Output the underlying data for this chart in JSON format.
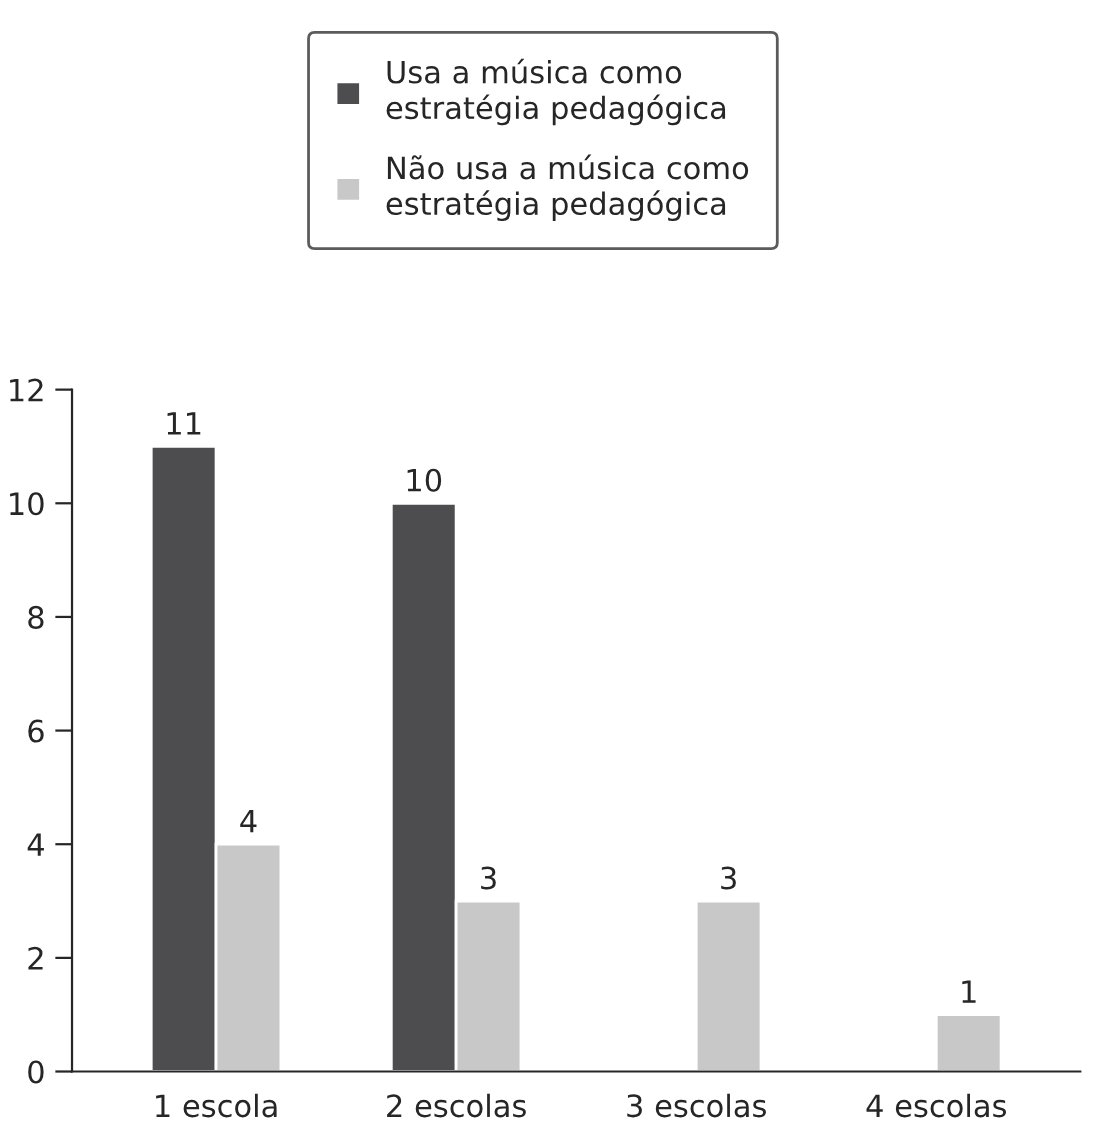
{
  "chart_data": {
    "type": "bar",
    "categories": [
      "1 escola",
      "2 escolas",
      "3 escolas",
      "4 escolas"
    ],
    "series": [
      {
        "name": "Usa a música como\nestratégia pedagógica",
        "color": "#4d4d4f",
        "values": [
          11,
          10,
          null,
          null
        ]
      },
      {
        "name": "Não usa a música como\nestratégia pedagógica",
        "color": "#c8c8c8",
        "values": [
          4,
          3,
          3,
          1
        ]
      }
    ],
    "ylim": [
      0,
      12
    ],
    "yticks": [
      0,
      2,
      4,
      6,
      8,
      10,
      12
    ],
    "data_labels": true,
    "legend": "top",
    "grid": false
  }
}
